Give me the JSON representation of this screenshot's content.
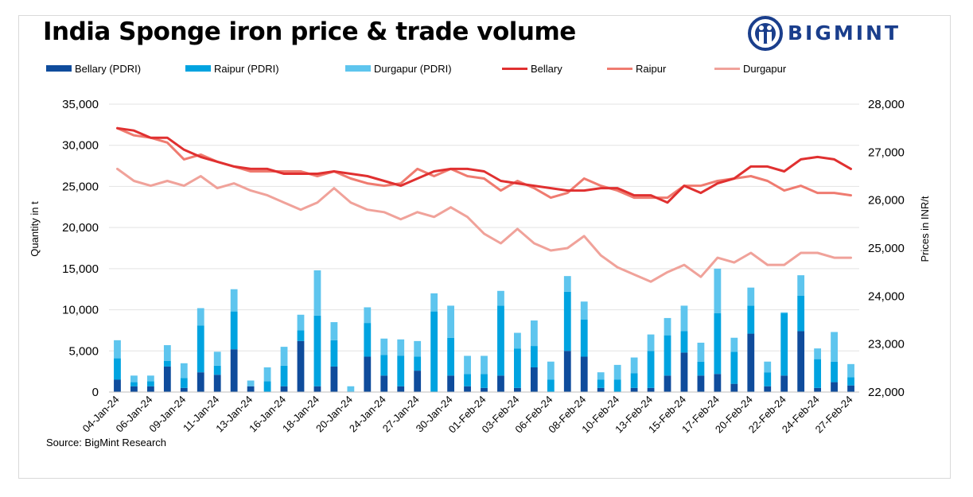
{
  "title": "India Sponge iron price & trade volume",
  "brand": "BIGMINT",
  "source": "Source: BigMint Research",
  "colors": {
    "bellary_bar": "#0f4c9c",
    "raipur_bar": "#00a3e0",
    "durgapur_bar": "#5ec5ee",
    "bellary_line": "#e03030",
    "raipur_line": "#ef7b70",
    "durgapur_line": "#f0a29a",
    "brand": "#1a3e8c"
  },
  "chart_data": {
    "type": "bar+line",
    "title": "India Sponge iron price & trade volume",
    "ylabel": "Quantity in t",
    "y2label": "Prices in INR/t",
    "ylim": [
      0,
      35000
    ],
    "y2lim": [
      22000,
      28000
    ],
    "yticks": [
      "0",
      "5,000",
      "10,000",
      "15,000",
      "20,000",
      "25,000",
      "30,000",
      "35,000"
    ],
    "y2ticks": [
      "22,000",
      "23,000",
      "24,000",
      "25,000",
      "26,000",
      "27,000",
      "28,000"
    ],
    "x_tick_labels": [
      "04-Jan-24",
      "06-Jan-24",
      "09-Jan-24",
      "11-Jan-24",
      "13-Jan-24",
      "16-Jan-24",
      "18-Jan-24",
      "20-Jan-24",
      "24-Jan-24",
      "27-Jan-24",
      "30-Jan-24",
      "01-Feb-24",
      "03-Feb-24",
      "06-Feb-24",
      "08-Feb-24",
      "10-Feb-24",
      "13-Feb-24",
      "15-Feb-24",
      "17-Feb-24",
      "20-Feb-24",
      "22-Feb-24",
      "24-Feb-24",
      "27-Feb-24"
    ],
    "n_points": 45,
    "grid": true,
    "legend_position": "top",
    "stacked_series": [
      {
        "name": "Bellary (PDRI)",
        "values": [
          1500,
          700,
          700,
          3100,
          500,
          2400,
          2100,
          5200,
          700,
          0,
          700,
          6200,
          700,
          3100,
          0,
          4300,
          2000,
          700,
          2600,
          0,
          2000,
          700,
          500,
          2000,
          500,
          3000,
          0,
          5000,
          4300,
          500,
          0,
          500,
          500,
          2000,
          4800,
          2000,
          2200,
          1000,
          7100,
          700,
          2000,
          7400,
          500,
          1200,
          800
        ]
      },
      {
        "name": "Raipur (PDRI)",
        "values": [
          2600,
          500,
          600,
          700,
          1200,
          5700,
          1100,
          4600,
          0,
          1300,
          2500,
          1300,
          8600,
          3200,
          0,
          4100,
          2500,
          3700,
          1700,
          9800,
          4600,
          1500,
          1700,
          8500,
          4800,
          2600,
          1500,
          7200,
          4500,
          1000,
          1500,
          1800,
          4500,
          4900,
          2600,
          1700,
          7400,
          3900,
          3400,
          1700,
          7600,
          4300,
          3500,
          2500,
          1000
        ]
      },
      {
        "name": "Durgapur (PDRI)",
        "values": [
          2200,
          800,
          700,
          1900,
          1800,
          2100,
          1700,
          2700,
          700,
          1700,
          2300,
          1900,
          5500,
          2200,
          700,
          1900,
          2000,
          2000,
          1900,
          2200,
          3900,
          2200,
          2200,
          1800,
          1900,
          3100,
          2200,
          1900,
          2200,
          900,
          1800,
          1900,
          2000,
          2100,
          3100,
          2300,
          5400,
          1700,
          2200,
          1300,
          100,
          2500,
          1300,
          3600,
          1600
        ]
      }
    ],
    "line_series": [
      {
        "name": "Bellary",
        "values": [
          27500,
          27450,
          27300,
          27300,
          27050,
          26900,
          26800,
          26700,
          26650,
          26650,
          26550,
          26550,
          26550,
          26600,
          26550,
          26500,
          26400,
          26300,
          26450,
          26600,
          26650,
          26650,
          26600,
          26400,
          26350,
          26300,
          26250,
          26200,
          26200,
          26250,
          26250,
          26100,
          26100,
          25950,
          26300,
          26150,
          26350,
          26450,
          26700,
          26700,
          26600,
          26850,
          26900,
          26850,
          26650
        ]
      },
      {
        "name": "Raipur",
        "values": [
          27500,
          27350,
          27300,
          27200,
          26850,
          26950,
          26800,
          26700,
          26600,
          26600,
          26600,
          26600,
          26500,
          26600,
          26450,
          26350,
          26300,
          26350,
          26650,
          26500,
          26650,
          26500,
          26450,
          26200,
          26400,
          26250,
          26050,
          26150,
          26450,
          26300,
          26200,
          26050,
          26050,
          26050,
          26300,
          26300,
          26400,
          26450,
          26500,
          26400,
          26200,
          26300,
          26150,
          26150,
          26100
        ]
      },
      {
        "name": "Durgapur",
        "values": [
          26650,
          26400,
          26300,
          26400,
          26300,
          26500,
          26250,
          26350,
          26200,
          26100,
          25950,
          25800,
          25950,
          26250,
          25950,
          25800,
          25750,
          25600,
          25750,
          25650,
          25850,
          25650,
          25300,
          25100,
          25400,
          25100,
          24950,
          25000,
          25250,
          24850,
          24600,
          24450,
          24300,
          24500,
          24650,
          24400,
          24800,
          24700,
          24900,
          24650,
          24650,
          24900,
          24900,
          24800,
          24800
        ]
      }
    ]
  }
}
